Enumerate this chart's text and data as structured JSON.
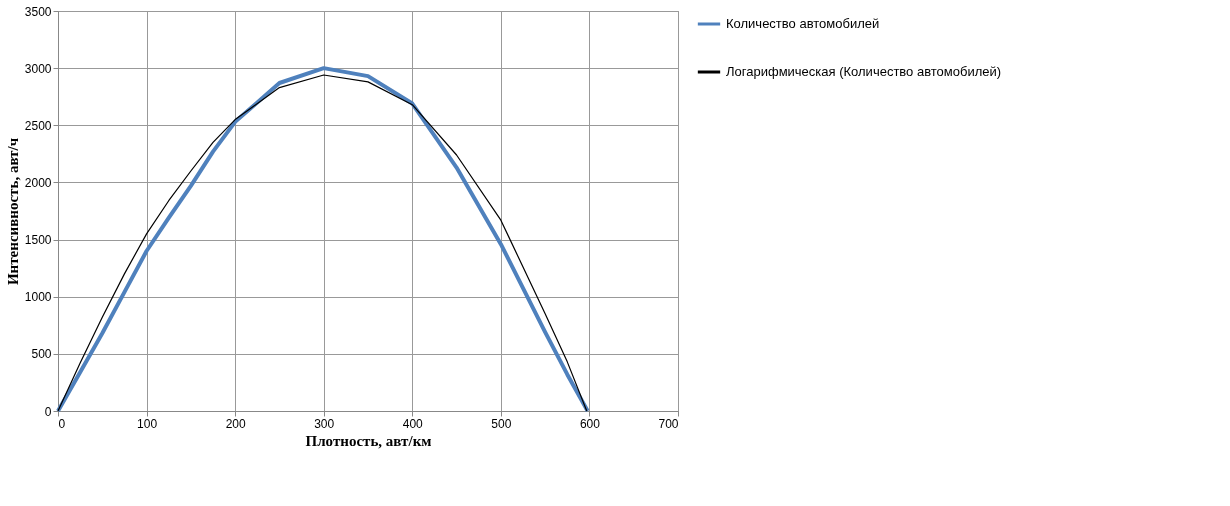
{
  "chart_data": {
    "type": "line",
    "xlabel": "Плотность, авт/км",
    "ylabel": "Интенсивность, авт/ч",
    "x": [
      0,
      25,
      50,
      75,
      100,
      125,
      150,
      175,
      200,
      250,
      300,
      350,
      400,
      450,
      500,
      550,
      575,
      598
    ],
    "series": [
      {
        "name": "Количество автомобилей",
        "color": "#4f81bd",
        "values": [
          0,
          340,
          680,
          1040,
          1400,
          1690,
          1970,
          2270,
          2530,
          2870,
          3000,
          2930,
          2690,
          2130,
          1460,
          690,
          320,
          0
        ]
      },
      {
        "name": "Логарифмическая (Количество автомобилей)",
        "color": "#000000",
        "x": [
          0,
          25,
          50,
          75,
          100,
          125,
          150,
          175,
          200,
          250,
          300,
          350,
          400,
          450,
          500,
          550,
          575,
          597
        ],
        "values": [
          0,
          420,
          820,
          1200,
          1550,
          1840,
          2100,
          2350,
          2550,
          2830,
          2940,
          2880,
          2680,
          2240,
          1670,
          850,
          430,
          0
        ]
      }
    ],
    "xlim": [
      0,
      700
    ],
    "xticks": [
      0,
      100,
      200,
      300,
      400,
      500,
      600,
      700
    ],
    "ylim": [
      0,
      3500
    ],
    "yticks": [
      0,
      500,
      1000,
      1500,
      2000,
      2500,
      3000,
      3500
    ],
    "grid": true,
    "legend": "right",
    "marker": "none",
    "line_style": "solid"
  }
}
